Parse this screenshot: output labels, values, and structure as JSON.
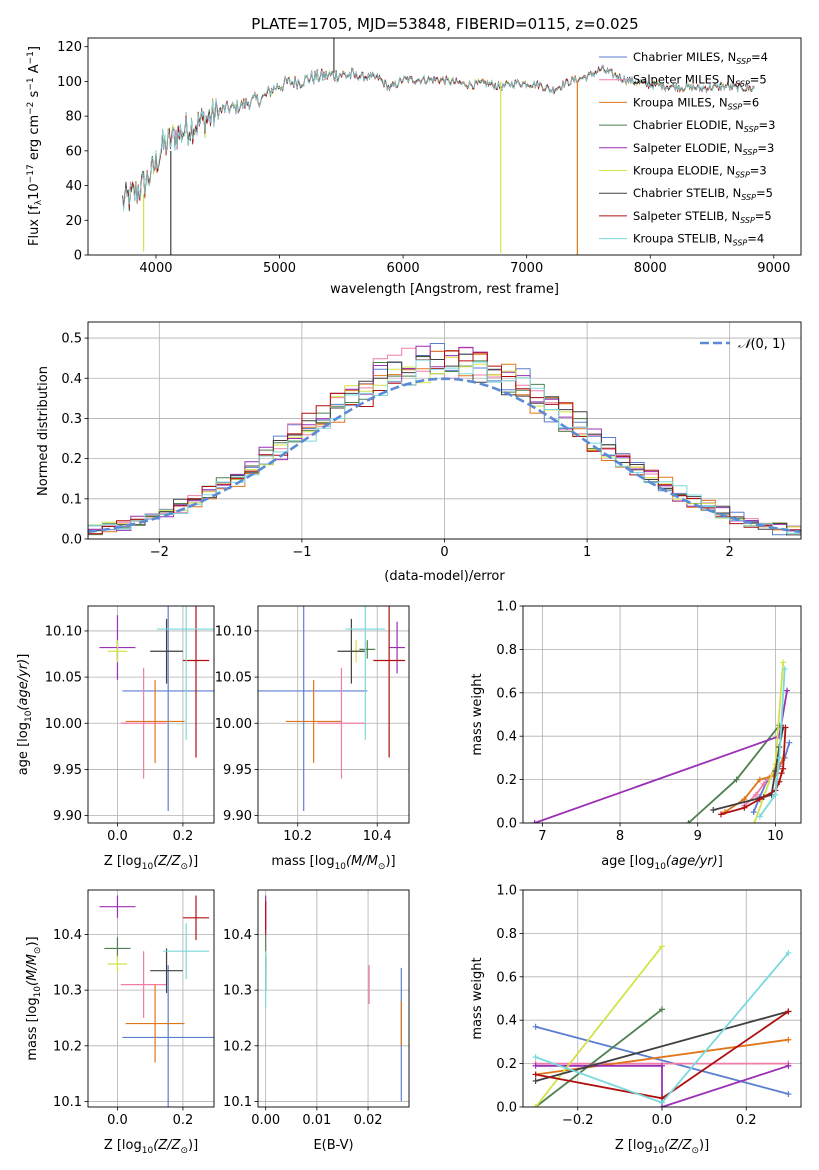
{
  "figure": {
    "title": "PLATE=1705, MJD=53848, FIBERID=0115, z=0.025"
  },
  "colors": {
    "chabrier_miles": "#5b7fd0",
    "salpeter_miles": "#f07ca8",
    "kroupa_miles": "#e0761a",
    "chabrier_elodie": "#4e8050",
    "salpeter_elodie": "#9b2fb5",
    "kroupa_elodie": "#d4e24a",
    "chabrier_stelib": "#404040",
    "salpeter_stelib": "#b01010",
    "kroupa_stelib": "#7ad9dc"
  },
  "chart_data": [
    {
      "id": "spectrum",
      "type": "line",
      "xlabel": "wavelength [Angstrom, rest frame]",
      "ylabel": "Flux [f_λ10^-17 erg cm^-2 s^-1 A^-1]",
      "xlim": [
        3450,
        9220
      ],
      "ylim": [
        0,
        125
      ],
      "xticks": [
        4000,
        5000,
        6000,
        7000,
        8000,
        9000
      ],
      "yticks": [
        0,
        20,
        40,
        60,
        80,
        100,
        120
      ],
      "grid": false,
      "legend_position": "upper-right",
      "legend": [
        {
          "main": "Chabrier MILES, N",
          "sub": "SSP",
          "val": "=4",
          "color": "#5b7fd0"
        },
        {
          "main": "Salpeter MILES, N",
          "sub": "SSP",
          "val": "=5",
          "color": "#f07ca8"
        },
        {
          "main": "Kroupa MILES, N",
          "sub": "SSP",
          "val": "=6",
          "color": "#e0761a"
        },
        {
          "main": "Chabrier ELODIE, N",
          "sub": "SSP",
          "val": "=3",
          "color": "#4e8050"
        },
        {
          "main": "Salpeter ELODIE, N",
          "sub": "SSP",
          "val": "=3",
          "color": "#9b2fb5"
        },
        {
          "main": "Kroupa ELODIE, N",
          "sub": "SSP",
          "val": "=3",
          "color": "#d4e24a"
        },
        {
          "main": "Chabrier STELIB, N",
          "sub": "SSP",
          "val": "=5",
          "color": "#404040"
        },
        {
          "main": "Salpeter STELIB, N",
          "sub": "SSP",
          "val": "=5",
          "color": "#b01010"
        },
        {
          "main": "Kroupa STELIB, N",
          "sub": "SSP",
          "val": "=4",
          "color": "#7ad9dc"
        }
      ],
      "x": [
        3730,
        3800,
        3900,
        3970,
        4050,
        4150,
        4250,
        4350,
        4450,
        4550,
        4650,
        4750,
        4860,
        4950,
        5050,
        5170,
        5250,
        5350,
        5500,
        5650,
        5800,
        5893,
        6000,
        6150,
        6300,
        6450,
        6563,
        6650,
        6800,
        6900,
        7000,
        7100,
        7200,
        7350,
        7500,
        7600,
        7800,
        8000,
        8200,
        8400,
        8600,
        8800
      ],
      "y": [
        30,
        34,
        40,
        48,
        62,
        68,
        73,
        76,
        80,
        84,
        85,
        88,
        90,
        96,
        99,
        100,
        102,
        103,
        104,
        103,
        102,
        96,
        101,
        101,
        101,
        99,
        98,
        99,
        97,
        99,
        99,
        98,
        95,
        100,
        103,
        107,
        101,
        98,
        97,
        96,
        97,
        96
      ],
      "spikes": [
        {
          "x": 4120,
          "from": 60,
          "to": 0,
          "color": "#404040"
        },
        {
          "x": 5440,
          "from": 105,
          "to": 128,
          "color": "#404040"
        },
        {
          "x": 6790,
          "from": 100,
          "to": 1,
          "color": "#d4e24a"
        },
        {
          "x": 7410,
          "from": 100,
          "to": 0,
          "color": "#e0761a"
        },
        {
          "x": 3900,
          "from": 35,
          "to": 2,
          "color": "#d4e24a"
        }
      ]
    },
    {
      "id": "residual_histogram",
      "type": "line",
      "xlabel": "(data-model)/error",
      "ylabel": "Normed distribution",
      "xlim": [
        -2.5,
        2.5
      ],
      "ylim": [
        0,
        0.54
      ],
      "xticks": [
        -2,
        -1,
        0,
        1,
        2
      ],
      "yticks": [
        0,
        0.1,
        0.2,
        0.3,
        0.4,
        0.5
      ],
      "ytick_labels": [
        "0.0",
        "0.1",
        "0.2",
        "0.3",
        "0.4",
        "0.5"
      ],
      "grid": true,
      "reference_curve": {
        "label_prefix": "𝒩",
        "label_args": "(0, 1)",
        "color": "#5b8bd6"
      },
      "legend_position": "upper-right"
    },
    {
      "id": "age_vs_metallicity",
      "type": "scatter",
      "xlabel_prefix": "Z [log",
      "xlabel_ratio": "(Z/Z",
      "xlabel_suffix": ")]",
      "ylabel_prefix": "age  [log",
      "ylabel_ratio": "(age/yr)",
      "ylabel_suffix": "]",
      "xlim": [
        -0.09,
        0.295
      ],
      "ylim": [
        9.892,
        10.127
      ],
      "xticks": [
        0.0,
        0.2
      ],
      "xtick_labels": [
        "0.0",
        "0.2"
      ],
      "yticks": [
        9.9,
        9.95,
        10.0,
        10.05,
        10.1
      ],
      "ytick_labels": [
        "9.90",
        "9.95",
        "10.00",
        "10.05",
        "10.10"
      ],
      "grid": true,
      "points": [
        {
          "x": 0.155,
          "xerr": 0.14,
          "y": 10.035,
          "yerr": 0.13,
          "color": "#5b7fd0"
        },
        {
          "x": 0.08,
          "xerr": 0.07,
          "y": 10.0,
          "yerr": 0.06,
          "color": "#f07ca8"
        },
        {
          "x": 0.115,
          "xerr": 0.09,
          "y": 10.002,
          "yerr": 0.045,
          "color": "#e0761a"
        },
        {
          "x": 0.0,
          "xerr": 0.0,
          "y": 10.08,
          "yerr": 0.01,
          "color": "#4e8050"
        },
        {
          "x": 0.0,
          "xerr": 0.055,
          "y": 10.082,
          "yerr": 0.035,
          "color": "#9b2fb5"
        },
        {
          "x": 0.0,
          "xerr": 0.03,
          "y": 10.078,
          "yerr": 0.012,
          "color": "#d4e24a"
        },
        {
          "x": 0.15,
          "xerr": 0.05,
          "y": 10.078,
          "yerr": 0.035,
          "color": "#404040"
        },
        {
          "x": 0.24,
          "xerr": 0.04,
          "y": 10.068,
          "yerr": 0.105,
          "color": "#b01010"
        },
        {
          "x": 0.21,
          "xerr": 0.09,
          "y": 10.102,
          "yerr": 0.12,
          "color": "#7ad9dc"
        }
      ]
    },
    {
      "id": "age_vs_mass",
      "type": "scatter",
      "xlabel_prefix": "mass [log",
      "xlabel_ratio": "(M/M",
      "xlabel_suffix": ")]",
      "xlim": [
        10.1,
        10.48
      ],
      "ylim": [
        9.892,
        10.127
      ],
      "xticks": [
        10.2,
        10.4
      ],
      "xtick_labels": [
        "10.2",
        "10.4"
      ],
      "yticks": [
        9.9,
        9.95,
        10.0,
        10.05,
        10.1
      ],
      "ytick_labels": [
        "9.90",
        "9.95",
        "10.00",
        "10.05",
        "10.10"
      ],
      "grid": true,
      "points": [
        {
          "x": 10.215,
          "xerr": 0.16,
          "y": 10.035,
          "yerr": 0.13,
          "color": "#5b7fd0"
        },
        {
          "x": 10.31,
          "xerr": 0.06,
          "y": 10.0,
          "yerr": 0.06,
          "color": "#f07ca8"
        },
        {
          "x": 10.24,
          "xerr": 0.07,
          "y": 10.002,
          "yerr": 0.045,
          "color": "#e0761a"
        },
        {
          "x": 10.375,
          "xerr": 0.02,
          "y": 10.08,
          "yerr": 0.01,
          "color": "#4e8050"
        },
        {
          "x": 10.45,
          "xerr": 0.02,
          "y": 10.082,
          "yerr": 0.028,
          "color": "#9b2fb5"
        },
        {
          "x": 10.347,
          "xerr": 0.015,
          "y": 10.078,
          "yerr": 0.012,
          "color": "#d4e24a"
        },
        {
          "x": 10.335,
          "xerr": 0.035,
          "y": 10.078,
          "yerr": 0.035,
          "color": "#404040"
        },
        {
          "x": 10.43,
          "xerr": 0.04,
          "y": 10.068,
          "yerr": 0.105,
          "color": "#b01010"
        },
        {
          "x": 10.37,
          "xerr": 0.05,
          "y": 10.102,
          "yerr": 0.12,
          "color": "#7ad9dc"
        }
      ]
    },
    {
      "id": "weight_vs_age",
      "type": "line",
      "xlabel_prefix": "age  [log",
      "xlabel_ratio": "(age/yr)",
      "xlabel_suffix": "]",
      "ylabel": "mass weight",
      "xlim": [
        6.75,
        10.33
      ],
      "ylim": [
        0,
        1.0
      ],
      "xticks": [
        7,
        8,
        9,
        10
      ],
      "xtick_labels": [
        "7",
        "8",
        "9",
        "10"
      ],
      "yticks": [
        0,
        0.2,
        0.4,
        0.6,
        0.8,
        1.0
      ],
      "ytick_labels": [
        "0.0",
        "0.2",
        "0.4",
        "0.6",
        "0.8",
        "1.0"
      ],
      "grid": true,
      "series": [
        {
          "color": "#5b7fd0",
          "x": [
            9.72,
            9.8,
            9.9,
            10.05,
            10.12,
            10.18
          ],
          "y": [
            0.05,
            0.12,
            0.2,
            0.26,
            0.3,
            0.37
          ]
        },
        {
          "color": "#f07ca8",
          "x": [
            9.6,
            9.75,
            9.85,
            9.95,
            10.05
          ],
          "y": [
            0.08,
            0.13,
            0.18,
            0.22,
            0.27
          ]
        },
        {
          "color": "#e0761a",
          "x": [
            9.35,
            9.6,
            9.8,
            10.0,
            10.1
          ],
          "y": [
            0.05,
            0.11,
            0.2,
            0.22,
            0.3
          ]
        },
        {
          "color": "#4e8050",
          "x": [
            8.88,
            9.5,
            10.05
          ],
          "y": [
            0.0,
            0.2,
            0.45
          ]
        },
        {
          "color": "#9b2fb5",
          "x": [
            6.9,
            10.05,
            10.15
          ],
          "y": [
            0.0,
            0.4,
            0.61
          ]
        },
        {
          "color": "#d4e24a",
          "x": [
            9.73,
            10.0,
            10.1
          ],
          "y": [
            0.0,
            0.27,
            0.74
          ]
        },
        {
          "color": "#404040",
          "x": [
            9.2,
            9.85,
            9.95,
            10.0,
            10.05,
            10.1
          ],
          "y": [
            0.06,
            0.12,
            0.13,
            0.24,
            0.35,
            0.44
          ]
        },
        {
          "color": "#b01010",
          "x": [
            9.3,
            9.6,
            9.8,
            10.0,
            10.05,
            10.08,
            10.1,
            10.13
          ],
          "y": [
            0.04,
            0.07,
            0.11,
            0.15,
            0.19,
            0.23,
            0.25,
            0.44
          ]
        },
        {
          "color": "#7ad9dc",
          "x": [
            9.8,
            10.0,
            10.05,
            10.12
          ],
          "y": [
            0.03,
            0.13,
            0.3,
            0.71
          ]
        }
      ]
    },
    {
      "id": "mass_vs_metallicity",
      "type": "scatter",
      "xlabel_prefix": "Z [log",
      "xlabel_ratio": "(Z/Z",
      "xlabel_suffix": ")]",
      "ylabel_prefix": "mass [log",
      "ylabel_ratio": "(M/M",
      "ylabel_suffix": ")]",
      "xlim": [
        -0.09,
        0.295
      ],
      "ylim": [
        10.09,
        10.48
      ],
      "xticks": [
        0.0,
        0.2
      ],
      "xtick_labels": [
        "0.0",
        "0.2"
      ],
      "yticks": [
        10.1,
        10.2,
        10.3,
        10.4
      ],
      "ytick_labels": [
        "10.1",
        "10.2",
        "10.3",
        "10.4"
      ],
      "grid": true,
      "points": [
        {
          "x": 0.155,
          "xerr": 0.14,
          "y": 10.215,
          "yerr": 0.13,
          "color": "#5b7fd0"
        },
        {
          "x": 0.08,
          "xerr": 0.07,
          "y": 10.31,
          "yerr": 0.06,
          "color": "#f07ca8"
        },
        {
          "x": 0.115,
          "xerr": 0.09,
          "y": 10.24,
          "yerr": 0.07,
          "color": "#e0761a"
        },
        {
          "x": 0.0,
          "xerr": 0.04,
          "y": 10.375,
          "yerr": 0.02,
          "color": "#4e8050"
        },
        {
          "x": 0.0,
          "xerr": 0.055,
          "y": 10.45,
          "yerr": 0.02,
          "color": "#9b2fb5"
        },
        {
          "x": 0.0,
          "xerr": 0.03,
          "y": 10.347,
          "yerr": 0.015,
          "color": "#d4e24a"
        },
        {
          "x": 0.15,
          "xerr": 0.05,
          "y": 10.335,
          "yerr": 0.04,
          "color": "#404040"
        },
        {
          "x": 0.24,
          "xerr": 0.04,
          "y": 10.43,
          "yerr": 0.04,
          "color": "#b01010"
        },
        {
          "x": 0.21,
          "xerr": 0.07,
          "y": 10.37,
          "yerr": 0.05,
          "color": "#7ad9dc"
        }
      ]
    },
    {
      "id": "mass_vs_ebv",
      "type": "scatter",
      "xlabel": "E(B-V)",
      "xlim": [
        -0.0015,
        0.028
      ],
      "ylim": [
        10.09,
        10.48
      ],
      "xticks": [
        0.0,
        0.01,
        0.02
      ],
      "xtick_labels": [
        "0.00",
        "0.01",
        "0.02"
      ],
      "yticks": [
        10.1,
        10.2,
        10.3,
        10.4
      ],
      "ytick_labels": [
        "10.1",
        "10.2",
        "10.3",
        "10.4"
      ],
      "grid": true,
      "points": [
        {
          "x": 0.0265,
          "xerr": 0,
          "y": 10.22,
          "yerr": 0.12,
          "color": "#5b7fd0"
        },
        {
          "x": 0.0202,
          "xerr": 0,
          "y": 10.31,
          "yerr": 0.035,
          "color": "#f07ca8"
        },
        {
          "x": 0.0265,
          "xerr": 0,
          "y": 10.24,
          "yerr": 0.04,
          "color": "#e0761a"
        },
        {
          "x": 0.0,
          "xerr": 0,
          "y": 10.38,
          "yerr": 0.02,
          "color": "#4e8050"
        },
        {
          "x": 0.0,
          "xerr": 0,
          "y": 10.44,
          "yerr": 0.03,
          "color": "#9b2fb5"
        },
        {
          "x": 0.0,
          "xerr": 0,
          "y": 10.35,
          "yerr": 0.02,
          "color": "#d4e24a"
        },
        {
          "x": 0.0,
          "xerr": 0,
          "y": 10.33,
          "yerr": 0.03,
          "color": "#404040"
        },
        {
          "x": 0.0,
          "xerr": 0,
          "y": 10.43,
          "yerr": 0.03,
          "color": "#b01010"
        },
        {
          "x": 0.0,
          "xerr": 0,
          "y": 10.32,
          "yerr": 0.05,
          "color": "#7ad9dc"
        }
      ]
    },
    {
      "id": "weight_vs_metallicity",
      "type": "line",
      "xlabel_prefix": "Z [log",
      "xlabel_ratio": "(Z/Z",
      "xlabel_suffix": ")]",
      "ylabel": "mass weight",
      "xlim": [
        -0.33,
        0.33
      ],
      "ylim": [
        0,
        1.0
      ],
      "xticks": [
        -0.2,
        0.0,
        0.2
      ],
      "xtick_labels": [
        "−0.2",
        "0.0",
        "0.2"
      ],
      "yticks": [
        0,
        0.2,
        0.4,
        0.6,
        0.8,
        1.0
      ],
      "ytick_labels": [
        "0.0",
        "0.2",
        "0.4",
        "0.6",
        "0.8",
        "1.0"
      ],
      "grid": true,
      "series": [
        {
          "color": "#5b7fd0",
          "x": [
            -0.3,
            0.3
          ],
          "y": [
            0.37,
            0.06
          ]
        },
        {
          "color": "#f07ca8",
          "x": [
            -0.3,
            0.3
          ],
          "y": [
            0.2,
            0.2
          ]
        },
        {
          "color": "#e0761a",
          "x": [
            -0.3,
            0.3
          ],
          "y": [
            0.15,
            0.31
          ]
        },
        {
          "color": "#4e8050",
          "x": [
            -0.3,
            0.0
          ],
          "y": [
            0.0,
            0.45
          ]
        },
        {
          "color": "#9b2fb5",
          "x": [
            -0.3,
            0.0,
            0.0,
            0.3
          ],
          "y": [
            0.19,
            0.19,
            0.0,
            0.19
          ]
        },
        {
          "color": "#d4e24a",
          "x": [
            -0.3,
            0.0
          ],
          "y": [
            0.0,
            0.74
          ]
        },
        {
          "color": "#404040",
          "x": [
            -0.3,
            0.3
          ],
          "y": [
            0.12,
            0.44
          ]
        },
        {
          "color": "#b01010",
          "x": [
            -0.3,
            0.0,
            0.3
          ],
          "y": [
            0.15,
            0.04,
            0.44
          ]
        },
        {
          "color": "#7ad9dc",
          "x": [
            -0.3,
            0.0,
            0.3
          ],
          "y": [
            0.23,
            0.02,
            0.71
          ]
        }
      ]
    }
  ]
}
